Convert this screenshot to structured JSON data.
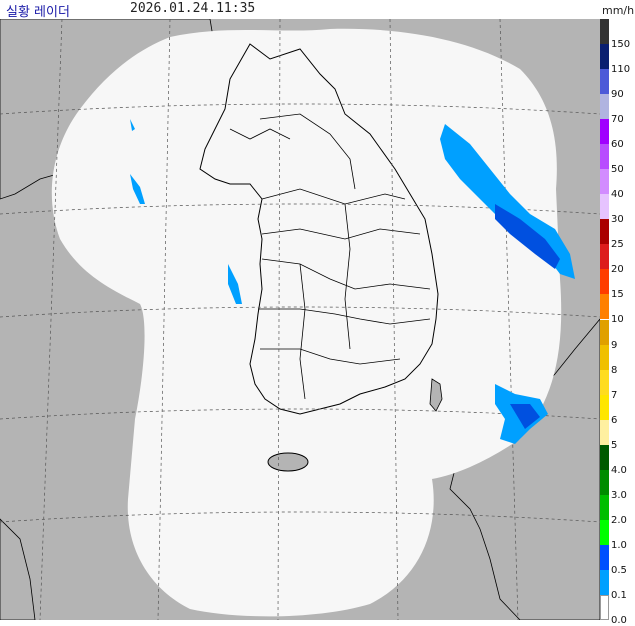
{
  "header": {
    "title": "실황 레이더",
    "timestamp": "2026.01.24.11:35",
    "unit": "mm/h"
  },
  "map": {
    "description_colors": {
      "sea_outside_coverage": "#b4b4b4",
      "coverage": "#f7f7f7",
      "land_outline": "#000000",
      "grid": "#444444",
      "echo_light": "#00a0ff",
      "echo_medium": "#0050e0"
    }
  },
  "legend": {
    "items": [
      {
        "label": "150",
        "color": "#333333"
      },
      {
        "label": "110",
        "color": "#0a1f70"
      },
      {
        "label": "90",
        "color": "#4d5ad8"
      },
      {
        "label": "70",
        "color": "#b0b4e0"
      },
      {
        "label": "60",
        "color": "#a000ff"
      },
      {
        "label": "50",
        "color": "#b84cff"
      },
      {
        "label": "40",
        "color": "#d28cff"
      },
      {
        "label": "30",
        "color": "#e6c3ff"
      },
      {
        "label": "25",
        "color": "#aa0000"
      },
      {
        "label": "20",
        "color": "#dd1c1c"
      },
      {
        "label": "15",
        "color": "#ff3c00"
      },
      {
        "label": "10",
        "color": "#ff8000"
      },
      {
        "label": "9",
        "color": "#e0a000"
      },
      {
        "label": "8",
        "color": "#f0c000"
      },
      {
        "label": "7",
        "color": "#ffdc1f"
      },
      {
        "label": "6",
        "color": "#ffe600"
      },
      {
        "label": "5",
        "color": "#fff0a0"
      },
      {
        "label": "4.0",
        "color": "#005a00"
      },
      {
        "label": "3.0",
        "color": "#008c00"
      },
      {
        "label": "2.0",
        "color": "#00be00"
      },
      {
        "label": "1.0",
        "color": "#00ff00"
      },
      {
        "label": "0.5",
        "color": "#0050ff"
      },
      {
        "label": "0.1",
        "color": "#00a0ff"
      },
      {
        "label": "0.0",
        "color": "#ffffff"
      }
    ]
  }
}
